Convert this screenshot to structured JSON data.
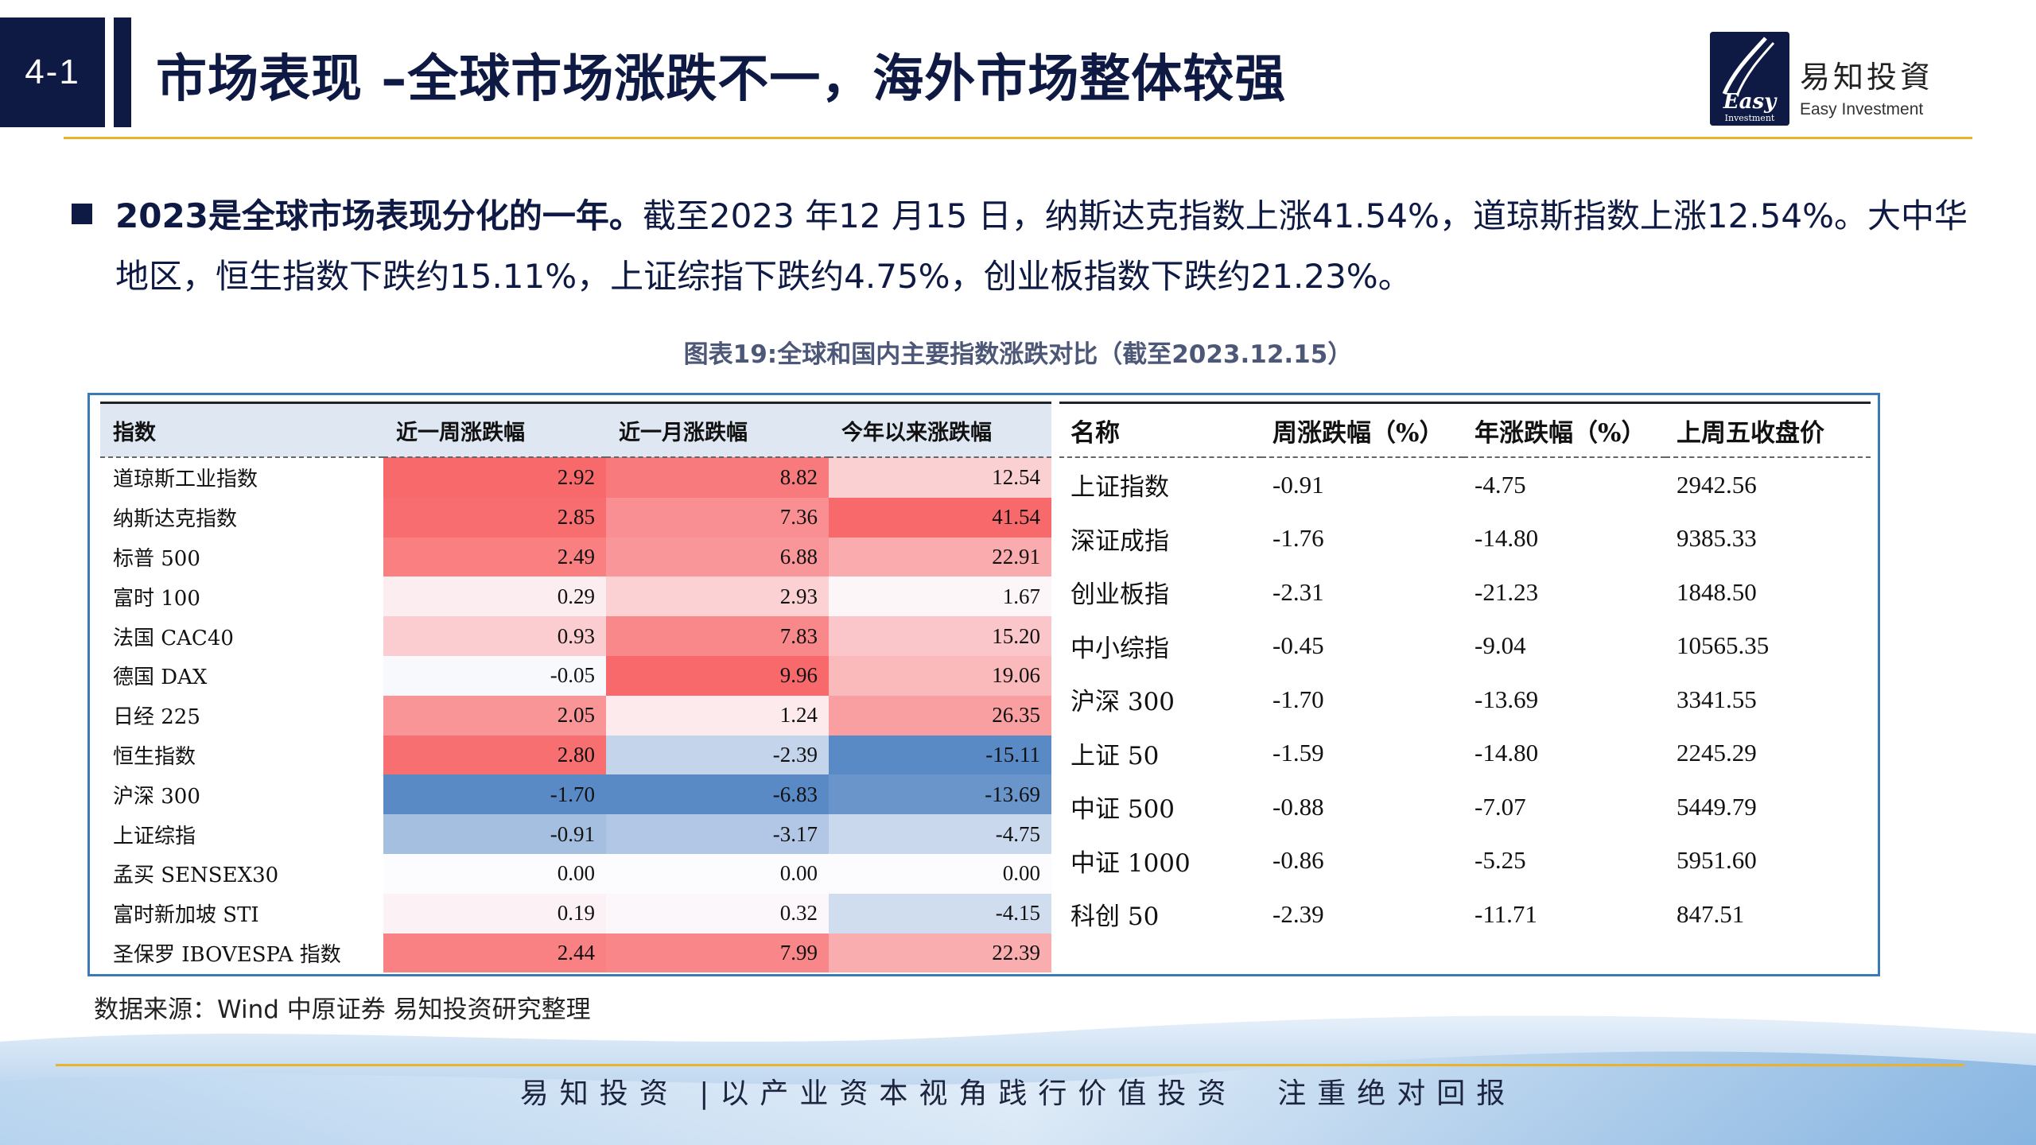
{
  "header": {
    "section_number": "4-1",
    "title": "市场表现 –全球市场涨跌不一，海外市场整体较强",
    "logo_name": "易知投資",
    "logo_sub": "Easy Investment",
    "logo_mark_text": "Easy",
    "logo_mark_sub": "Investment"
  },
  "summary": {
    "lead": "2023是全球市场表现分化的一年。",
    "body": "截至2023 年12 月15 日，纳斯达克指数上涨41.54%，道琼斯指数上涨12.54%。大中华地区，恒生指数下跌约15.11%，上证综指下跌约4.75%，创业板指数下跌约21.23%。"
  },
  "caption": "图表19:全球和国内主要指数涨跌对比（截至2023.12.15）",
  "left_table": {
    "headers": [
      "指数",
      "近一周涨跌幅",
      "近一月涨跌幅",
      "今年以来涨跌幅"
    ],
    "rows": [
      {
        "name": "道琼斯工业指数",
        "week": "2.92",
        "month": "8.82",
        "ytd": "12.54"
      },
      {
        "name": "纳斯达克指数",
        "week": "2.85",
        "month": "7.36",
        "ytd": "41.54"
      },
      {
        "name": "标普 500",
        "week": "2.49",
        "month": "6.88",
        "ytd": "22.91"
      },
      {
        "name": "富时 100",
        "week": "0.29",
        "month": "2.93",
        "ytd": "1.67"
      },
      {
        "name": "法国 CAC40",
        "week": "0.93",
        "month": "7.83",
        "ytd": "15.20"
      },
      {
        "name": "德国 DAX",
        "week": "-0.05",
        "month": "9.96",
        "ytd": "19.06"
      },
      {
        "name": "日经 225",
        "week": "2.05",
        "month": "1.24",
        "ytd": "26.35"
      },
      {
        "name": "恒生指数",
        "week": "2.80",
        "month": "-2.39",
        "ytd": "-15.11"
      },
      {
        "name": "沪深 300",
        "week": "-1.70",
        "month": "-6.83",
        "ytd": "-13.69"
      },
      {
        "name": "上证综指",
        "week": "-0.91",
        "month": "-3.17",
        "ytd": "-4.75"
      },
      {
        "name": "孟买 SENSEX30",
        "week": "0.00",
        "month": "0.00",
        "ytd": "0.00"
      },
      {
        "name": "富时新加坡 STI",
        "week": "0.19",
        "month": "0.32",
        "ytd": "-4.15"
      },
      {
        "name": "圣保罗 IBOVESPA 指数",
        "week": "2.44",
        "month": "7.99",
        "ytd": "22.39"
      }
    ]
  },
  "right_table": {
    "headers": [
      "名称",
      "周涨跌幅（%）",
      "年涨跌幅（%）",
      "上周五收盘价"
    ],
    "rows": [
      {
        "name": "上证指数",
        "week": "-0.91",
        "year": "-4.75",
        "close": "2942.56"
      },
      {
        "name": "深证成指",
        "week": "-1.76",
        "year": "-14.80",
        "close": "9385.33"
      },
      {
        "name": "创业板指",
        "week": "-2.31",
        "year": "-21.23",
        "close": "1848.50"
      },
      {
        "name": "中小综指",
        "week": "-0.45",
        "year": "-9.04",
        "close": "10565.35"
      },
      {
        "name": "沪深 300",
        "week": "-1.70",
        "year": "-13.69",
        "close": "3341.55"
      },
      {
        "name": "上证 50",
        "week": "-1.59",
        "year": "-14.80",
        "close": "2245.29"
      },
      {
        "name": "中证 500",
        "week": "-0.88",
        "year": "-7.07",
        "close": "5449.79"
      },
      {
        "name": "中证 1000",
        "week": "-0.86",
        "year": "-5.25",
        "close": "5951.60"
      },
      {
        "name": "科创 50",
        "week": "-2.39",
        "year": "-11.71",
        "close": "847.51"
      }
    ]
  },
  "source": "数据来源：Wind 中原证券  易知投资研究整理",
  "footer": {
    "slogan": "易知投资 |以产业资本视角践行价值投资  注重绝对回报"
  },
  "colors": {
    "navy": "#0f1a44",
    "gold": "#e9b22d",
    "frame_blue": "#3b7bb5",
    "heat_positive": "#f8696b",
    "heat_negative": "#5a8ac6",
    "heat_neutral": "#fcfcff"
  }
}
